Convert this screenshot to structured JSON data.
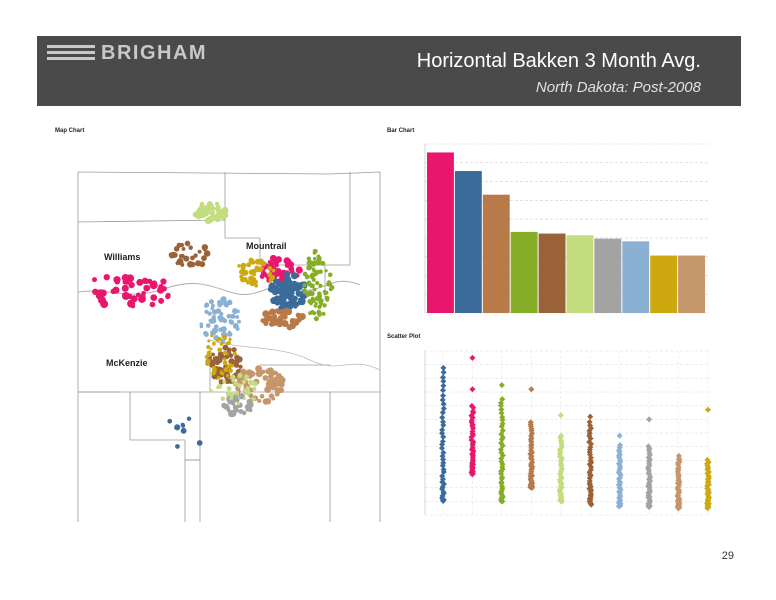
{
  "header": {
    "logo_text": "BRIGHAM",
    "title": "Horizontal Bakken 3 Month Avg.",
    "subtitle": "North Dakota:  Post-2008"
  },
  "map": {
    "label": "Map Chart",
    "counties": [
      "Williams",
      "Mountrail",
      "McKenzie"
    ]
  },
  "bar_chart": {
    "label": "Bar Chart"
  },
  "scatter": {
    "label": "Scatter Plot"
  },
  "page_number": "29",
  "colors": {
    "magenta": "#e8176d",
    "steel_blue": "#3a6b9a",
    "copper": "#b87a48",
    "olive_green": "#86ad28",
    "brown": "#9a6238",
    "light_green": "#c2dc7e",
    "gray": "#a3a3a3",
    "light_blue": "#8ab0d4",
    "gold": "#cda90f",
    "tan": "#c6966b"
  },
  "chart_data": [
    {
      "type": "bar",
      "title": "Bar Chart",
      "values": [
        475,
        420,
        350,
        240,
        235,
        230,
        220,
        212,
        170,
        170
      ],
      "ylim": [
        0,
        500
      ]
    },
    {
      "type": "scatter",
      "title": "Scatter Plot",
      "ylim": [
        0,
        1200
      ],
      "series": [
        {
          "color": "#3a6b9a",
          "min": 100,
          "max": 1080,
          "outliers": []
        },
        {
          "color": "#e8176d",
          "min": 300,
          "max": 800,
          "outliers": [
            1150,
            920
          ]
        },
        {
          "color": "#86ad28",
          "min": 100,
          "max": 850,
          "outliers": [
            950
          ]
        },
        {
          "color": "#b87a48",
          "min": 200,
          "max": 680,
          "outliers": [
            920
          ]
        },
        {
          "color": "#c2dc7e",
          "min": 100,
          "max": 580,
          "outliers": [
            730
          ]
        },
        {
          "color": "#9a6238",
          "min": 80,
          "max": 680,
          "outliers": [
            720
          ]
        },
        {
          "color": "#8ab0d4",
          "min": 60,
          "max": 510,
          "outliers": [
            580
          ]
        },
        {
          "color": "#a3a3a3",
          "min": 60,
          "max": 500,
          "outliers": [
            700
          ]
        },
        {
          "color": "#c6966b",
          "min": 50,
          "max": 430,
          "outliers": []
        },
        {
          "color": "#cda90f",
          "min": 50,
          "max": 400,
          "outliers": [
            770
          ]
        }
      ]
    }
  ]
}
